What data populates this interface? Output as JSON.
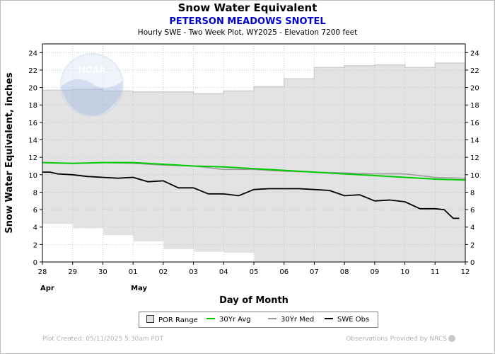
{
  "header": {
    "title": "Snow Water Equivalent",
    "station": "PETERSON MEADOWS SNOTEL",
    "subtitle": "Hourly SWE - Two Week Plot, WY2025 -  Elevation 7200 feet"
  },
  "logo": {
    "text": "NOAA"
  },
  "legend": {
    "por": "POR Range",
    "avg": "30Yr Avg",
    "med": "30Yr Med",
    "obs": "SWE Obs"
  },
  "footer": {
    "created": "Plot Created: 05/11/2025 5:30am PDT",
    "provider": "Observations Provided by NRCS"
  },
  "colors": {
    "por_fill": "#e3e3e3",
    "avg": "#00cc00",
    "med": "#999999",
    "obs": "#000000",
    "station": "#0000cc"
  },
  "chart_data": {
    "type": "line",
    "xlabel": "Day of Month",
    "ylabel": "Snow Water Equivalent, inches",
    "xlim": [
      0,
      14
    ],
    "ylim": [
      0,
      25
    ],
    "x_tick_labels": [
      "28",
      "29",
      "30",
      "01",
      "02",
      "03",
      "04",
      "05",
      "06",
      "07",
      "08",
      "09",
      "10",
      "11",
      "12"
    ],
    "month_labels": [
      {
        "x": 0,
        "label": "Apr"
      },
      {
        "x": 3,
        "label": "May"
      }
    ],
    "y_ticks": [
      0,
      2,
      4,
      6,
      8,
      10,
      12,
      14,
      16,
      18,
      20,
      22,
      24
    ],
    "grid": "horizontal and vertical dotted",
    "series": [
      {
        "name": "POR Range",
        "kind": "band",
        "x": [
          0,
          1,
          1.0,
          2,
          2.0,
          3,
          3.0,
          4,
          4.0,
          5,
          5.0,
          6,
          6.0,
          7,
          7.0,
          8,
          8.0,
          9,
          9.0,
          10,
          10.0,
          11,
          11.0,
          12,
          12.0,
          13,
          13.0,
          14
        ],
        "upper": [
          19.7,
          19.7,
          19.8,
          19.8,
          19.6,
          19.6,
          19.5,
          19.5,
          19.5,
          19.5,
          19.3,
          19.3,
          19.6,
          19.6,
          20.1,
          20.1,
          21.0,
          21.0,
          22.3,
          22.3,
          22.5,
          22.5,
          22.6,
          22.6,
          22.3,
          22.3,
          22.8,
          22.8
        ],
        "lower": [
          4.3,
          4.3,
          3.8,
          3.8,
          3.0,
          3.0,
          2.3,
          2.3,
          1.4,
          1.4,
          1.1,
          1.1,
          1.0,
          1.0,
          0,
          0,
          0,
          0,
          0,
          0,
          0,
          0,
          0,
          0,
          0,
          0,
          0,
          0
        ]
      },
      {
        "name": "30Yr Avg",
        "x": [
          0,
          1,
          2,
          3,
          4,
          5,
          6,
          7,
          8,
          9,
          10,
          11,
          12,
          13,
          14
        ],
        "values": [
          11.4,
          11.3,
          11.4,
          11.4,
          11.2,
          11.0,
          10.9,
          10.7,
          10.5,
          10.3,
          10.1,
          9.9,
          9.7,
          9.5,
          9.4
        ]
      },
      {
        "name": "30Yr Med",
        "x": [
          0,
          1,
          2,
          3,
          4,
          5,
          6,
          7,
          8,
          9,
          10,
          11,
          12,
          13,
          14
        ],
        "values": [
          11.4,
          11.3,
          11.4,
          11.3,
          11.1,
          11.0,
          10.6,
          10.6,
          10.4,
          10.3,
          10.2,
          10.1,
          10.1,
          9.7,
          9.6
        ]
      },
      {
        "name": "SWE Obs",
        "x": [
          0,
          0.25,
          0.5,
          1,
          1.5,
          2,
          2.5,
          3,
          3.5,
          4,
          4.5,
          5,
          5.5,
          6,
          6.5,
          7,
          7.5,
          8,
          8.5,
          9,
          9.5,
          10,
          10.5,
          11,
          11.5,
          12,
          12.5,
          13,
          13.3,
          13.6,
          13.8
        ],
        "values": [
          10.3,
          10.3,
          10.1,
          10.0,
          9.8,
          9.7,
          9.6,
          9.7,
          9.2,
          9.3,
          8.5,
          8.5,
          7.8,
          7.8,
          7.6,
          8.3,
          8.4,
          8.4,
          8.4,
          8.3,
          8.2,
          7.6,
          7.7,
          7.0,
          7.1,
          6.9,
          6.1,
          6.1,
          6.0,
          5.0,
          5.0
        ]
      }
    ]
  }
}
